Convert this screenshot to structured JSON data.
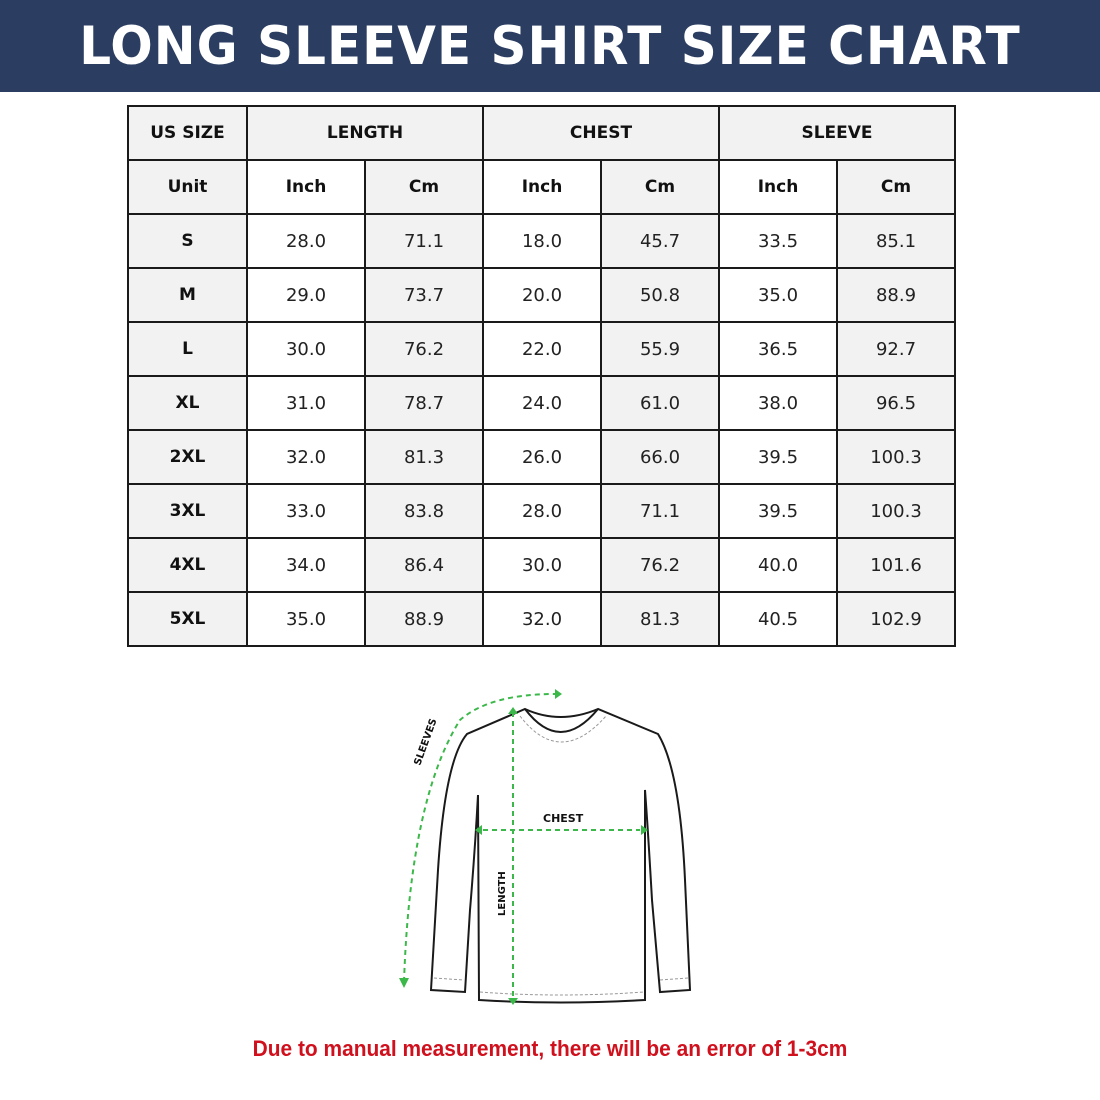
{
  "title": "LONG SLEEVE SHIRT SIZE CHART",
  "table": {
    "group_headers": [
      "US SIZE",
      "LENGTH",
      "CHEST",
      "SLEEVE"
    ],
    "unit_row": [
      "Unit",
      "Inch",
      "Cm",
      "Inch",
      "Cm",
      "Inch",
      "Cm"
    ],
    "rows": [
      [
        "S",
        "28.0",
        "71.1",
        "18.0",
        "45.7",
        "33.5",
        "85.1"
      ],
      [
        "M",
        "29.0",
        "73.7",
        "20.0",
        "50.8",
        "35.0",
        "88.9"
      ],
      [
        "L",
        "30.0",
        "76.2",
        "22.0",
        "55.9",
        "36.5",
        "92.7"
      ],
      [
        "XL",
        "31.0",
        "78.7",
        "24.0",
        "61.0",
        "38.0",
        "96.5"
      ],
      [
        "2XL",
        "32.0",
        "81.3",
        "26.0",
        "66.0",
        "39.5",
        "100.3"
      ],
      [
        "3XL",
        "33.0",
        "83.8",
        "28.0",
        "71.1",
        "39.5",
        "100.3"
      ],
      [
        "4XL",
        "34.0",
        "86.4",
        "30.0",
        "76.2",
        "40.0",
        "101.6"
      ],
      [
        "5XL",
        "35.0",
        "88.9",
        "32.0",
        "81.3",
        "40.5",
        "102.9"
      ]
    ]
  },
  "diagram": {
    "labels": {
      "sleeves": "SLEEVES",
      "chest": "CHEST",
      "length": "LENGTH"
    },
    "arrow_color": "#3cb84a"
  },
  "note": "Due to manual measurement, there will be an error of 1-3cm",
  "colors": {
    "banner": "#2b3e62",
    "note": "#d0101c",
    "cell_shade": "#f2f2f2"
  }
}
